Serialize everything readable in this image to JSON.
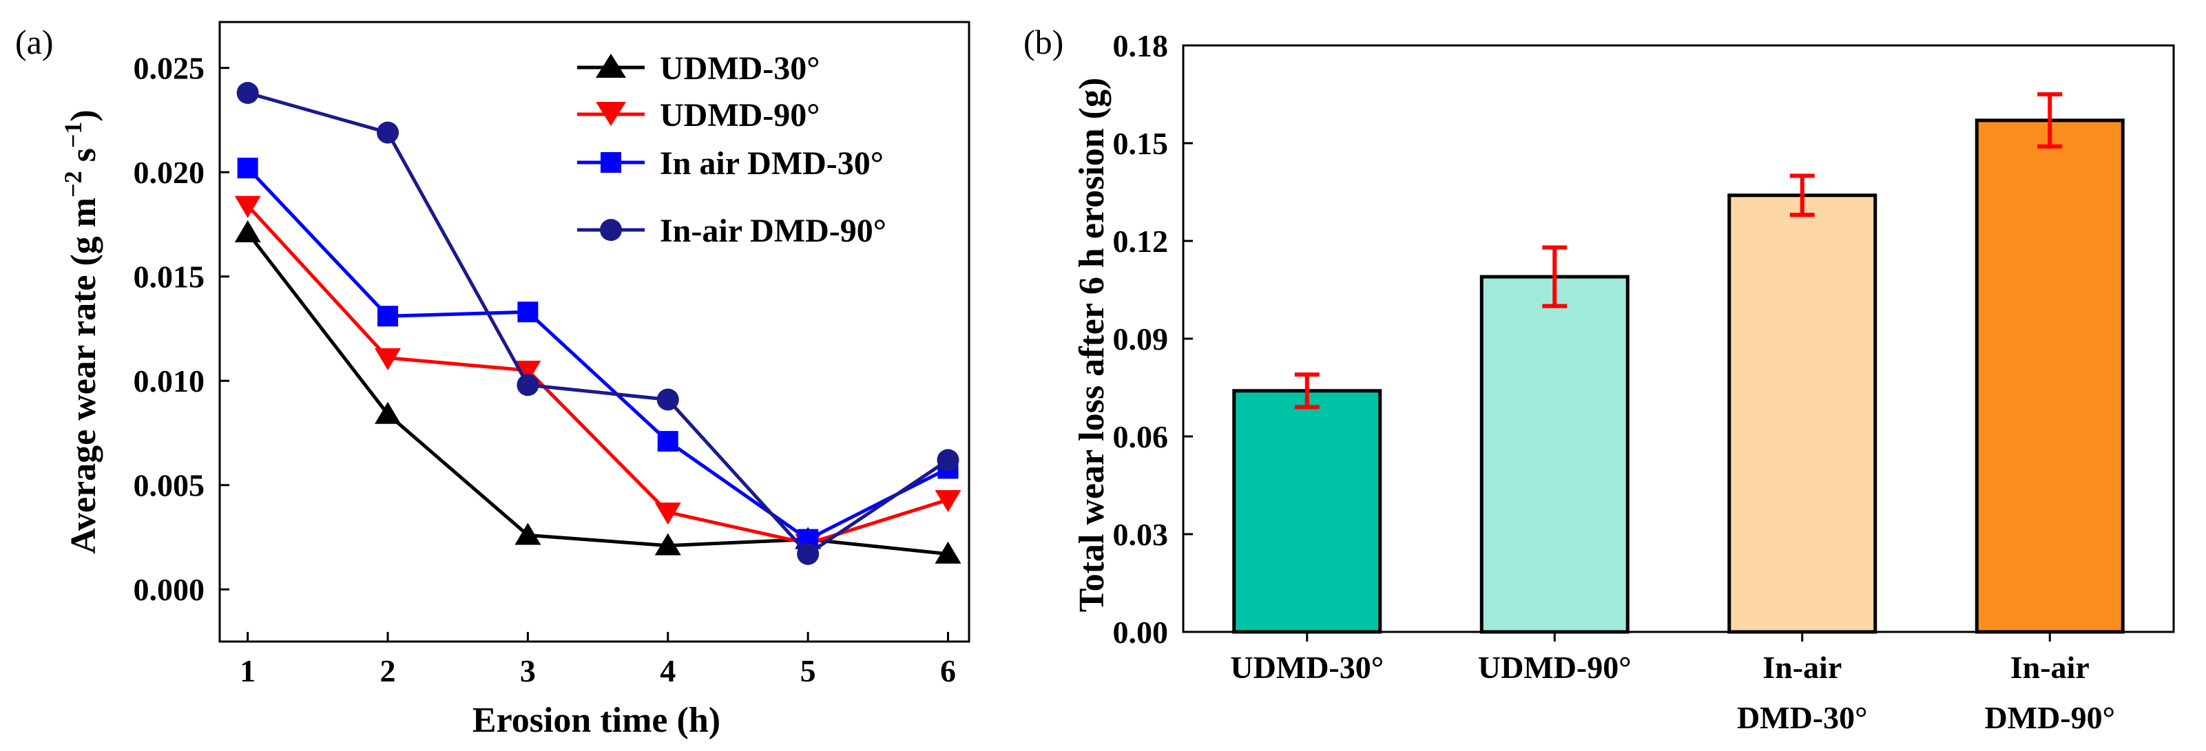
{
  "chart_data": [
    {
      "type": "line",
      "panel_label": "(a)",
      "xlabel": "Erosion time (h)",
      "ylabel": "Average wear rate (g m",
      "ylabel_sup1": "−2",
      "ylabel_mid": " s",
      "ylabel_sup2": "−1",
      "ylabel_end": ")",
      "x": [
        1,
        2,
        3,
        4,
        5,
        6
      ],
      "xlim": [
        0.8,
        6.15
      ],
      "ylim": [
        -0.0025,
        0.0272
      ],
      "yticks": [
        "0.000",
        "0.005",
        "0.010",
        "0.015",
        "0.020",
        "0.025"
      ],
      "ytick_values": [
        0,
        0.005,
        0.01,
        0.015,
        0.02,
        0.025
      ],
      "xticks": [
        "1",
        "2",
        "3",
        "4",
        "5",
        "6"
      ],
      "legend_position": "top-right",
      "series": [
        {
          "name": "UDMD-30°",
          "color": "#000000",
          "marker": "triangle-up",
          "values": [
            0.0171,
            0.0084,
            0.0026,
            0.0021,
            0.0024,
            0.0017
          ]
        },
        {
          "name": "UDMD-90°",
          "color": "#ff0000",
          "marker": "triangle-down",
          "values": [
            0.0184,
            0.0111,
            0.0105,
            0.0037,
            0.0022,
            0.0043
          ]
        },
        {
          "name": "In air DMD-30°",
          "color": "#0000ff",
          "marker": "square",
          "values": [
            0.0202,
            0.0131,
            0.0133,
            0.0071,
            0.0024,
            0.0058
          ]
        },
        {
          "name": "In-air DMD-90°",
          "color": "#1a1a8c",
          "marker": "circle",
          "values": [
            0.0238,
            0.0219,
            0.0098,
            0.0091,
            0.0017,
            0.0062
          ]
        }
      ]
    },
    {
      "type": "bar",
      "panel_label": "(b)",
      "ylabel": "Total wear loss after 6 h erosion (g)",
      "xlabel": "",
      "ylim": [
        0,
        0.18
      ],
      "yticks": [
        "0.00",
        "0.03",
        "0.06",
        "0.09",
        "0.12",
        "0.15",
        "0.18"
      ],
      "ytick_values": [
        0,
        0.03,
        0.06,
        0.09,
        0.12,
        0.15,
        0.18
      ],
      "categories": [
        {
          "line1": "UDMD-30°",
          "line2": ""
        },
        {
          "line1": "UDMD-90°",
          "line2": ""
        },
        {
          "line1": "In-air",
          "line2": "DMD-30°"
        },
        {
          "line1": "In-air",
          "line2": "DMD-90°"
        }
      ],
      "values": [
        0.074,
        0.109,
        0.134,
        0.157
      ],
      "errors": [
        0.005,
        0.009,
        0.006,
        0.008
      ],
      "colors": [
        "#00c3a6",
        "#a0eadc",
        "#fdd7a6",
        "#fb8d1e"
      ],
      "error_color": "#ff0000"
    }
  ]
}
